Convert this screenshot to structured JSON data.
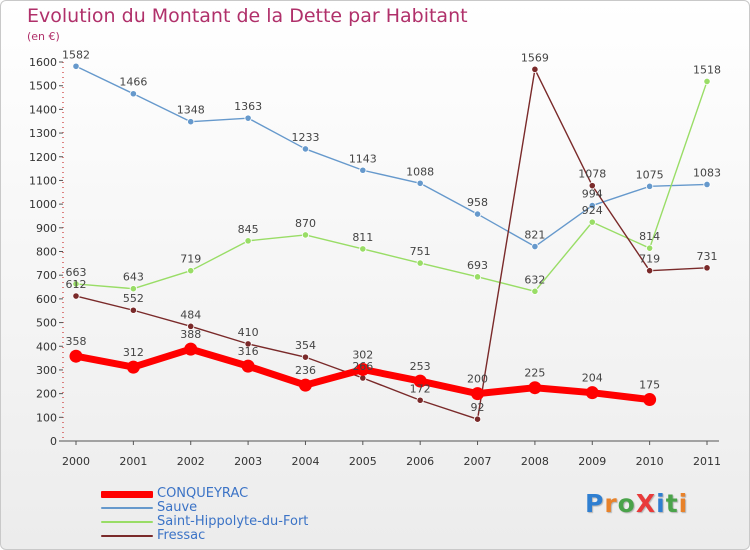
{
  "chart_data": {
    "type": "line",
    "title": "Evolution du Montant de la Dette par Habitant",
    "unit_label": "(en €)",
    "x": [
      "2000",
      "2001",
      "2002",
      "2003",
      "2004",
      "2005",
      "2006",
      "2007",
      "2008",
      "2009",
      "2010",
      "2011"
    ],
    "ylim": [
      0,
      1600
    ],
    "yticks": [
      0,
      100,
      200,
      300,
      400,
      500,
      600,
      700,
      800,
      900,
      1000,
      1100,
      1200,
      1300,
      1400,
      1500,
      1600
    ],
    "grid": false,
    "legend_position": "bottom-left",
    "series": [
      {
        "name": "CONQUEYRAC",
        "color": "#ff0000",
        "values": [
          358,
          312,
          388,
          316,
          236,
          302,
          253,
          200,
          225,
          204,
          175,
          null
        ]
      },
      {
        "name": "Sauve",
        "color": "#6699cc",
        "values": [
          1582,
          1466,
          1348,
          1363,
          1233,
          1143,
          1088,
          958,
          821,
          994,
          1075,
          1083
        ]
      },
      {
        "name": "Saint-Hippolyte-du-Fort",
        "color": "#99dd66",
        "values": [
          663,
          643,
          719,
          845,
          870,
          811,
          751,
          693,
          632,
          924,
          814,
          1518
        ]
      },
      {
        "name": "Fressac",
        "color": "#7a2a2a",
        "values": [
          612,
          552,
          484,
          410,
          354,
          266,
          172,
          92,
          1569,
          1078,
          719,
          731
        ]
      }
    ]
  },
  "logo": {
    "text": "ProXiti"
  }
}
